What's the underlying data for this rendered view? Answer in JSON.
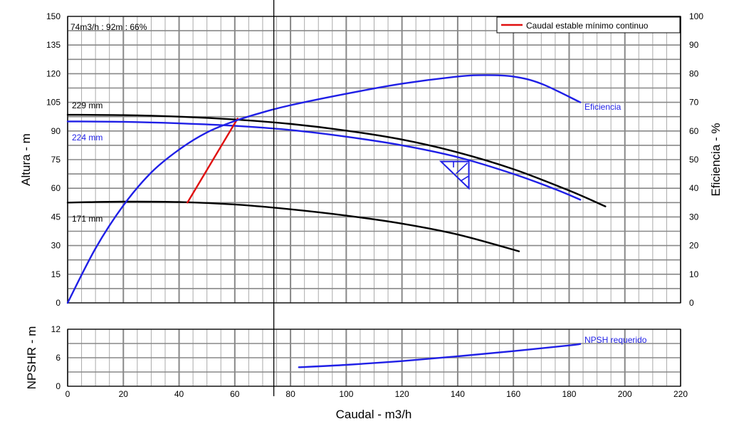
{
  "colors": {
    "black_curve": "#000000",
    "blue_curve": "#1f1fe6",
    "red_curve": "#e01010",
    "grid_minor": "#aaaaaa",
    "grid_major": "#888888"
  },
  "chart_data": [
    {
      "type": "line",
      "title": "",
      "xlabel": "",
      "ylabel": "Altura - m",
      "y2label": "Eficiencia - %",
      "xlim": [
        0,
        220
      ],
      "ylim": [
        0,
        150
      ],
      "y2lim": [
        0,
        100
      ],
      "x_ticks": [
        0,
        20,
        40,
        60,
        80,
        100,
        120,
        140,
        160,
        180,
        200,
        220
      ],
      "y_ticks": [
        0,
        15,
        30,
        45,
        60,
        75,
        90,
        105,
        120,
        135,
        150
      ],
      "y2_ticks": [
        0,
        10,
        20,
        30,
        40,
        50,
        60,
        70,
        80,
        90,
        100
      ],
      "grid": true,
      "legend": {
        "placement": "top-right",
        "entries": [
          {
            "name": "Caudal estable mínimo continuo",
            "color": "#e01010"
          }
        ]
      },
      "annotation": "74m3/h : 92m : 66%",
      "operating_point": {
        "flow": 74,
        "head": 92,
        "efficiency": 66
      },
      "series": [
        {
          "name": "229 mm",
          "axis": "left",
          "color": "#000000",
          "points": [
            [
              0,
              98.5
            ],
            [
              20,
              98.3
            ],
            [
              40,
              97.5
            ],
            [
              60,
              96.0
            ],
            [
              80,
              93.7
            ],
            [
              100,
              90.2
            ],
            [
              120,
              85.5
            ],
            [
              140,
              78.8
            ],
            [
              160,
              70.0
            ],
            [
              180,
              58.8
            ],
            [
              193,
              50.5
            ]
          ]
        },
        {
          "name": "224 mm",
          "axis": "left",
          "color": "#1f1fe6",
          "points": [
            [
              0,
              95.0
            ],
            [
              20,
              94.8
            ],
            [
              40,
              94.0
            ],
            [
              60,
              92.7
            ],
            [
              80,
              90.5
            ],
            [
              100,
              87.0
            ],
            [
              120,
              82.5
            ],
            [
              140,
              76.3
            ],
            [
              160,
              67.5
            ],
            [
              175,
              59.5
            ],
            [
              184,
              54.0
            ]
          ]
        },
        {
          "name": "171 mm",
          "axis": "left",
          "color": "#000000",
          "points": [
            [
              0,
              52.5
            ],
            [
              20,
              53.0
            ],
            [
              40,
              52.8
            ],
            [
              60,
              51.5
            ],
            [
              80,
              49.0
            ],
            [
              100,
              45.7
            ],
            [
              120,
              41.5
            ],
            [
              140,
              35.8
            ],
            [
              162,
              27.0
            ]
          ]
        },
        {
          "name": "Caudal estable mínimo continuo",
          "axis": "left",
          "color": "#e01010",
          "points": [
            [
              43,
              52.5
            ],
            [
              61,
              96.5
            ]
          ]
        },
        {
          "name": "Eficiencia",
          "axis": "right",
          "color": "#1f1fe6",
          "points": [
            [
              0,
              0
            ],
            [
              10,
              19
            ],
            [
              20,
              34
            ],
            [
              30,
              45.5
            ],
            [
              40,
              53.5
            ],
            [
              50,
              59.5
            ],
            [
              60,
              63.5
            ],
            [
              70,
              66.5
            ],
            [
              80,
              69.0
            ],
            [
              100,
              73.0
            ],
            [
              120,
              76.5
            ],
            [
              140,
              79.0
            ],
            [
              150,
              79.5
            ],
            [
              160,
              79.0
            ],
            [
              170,
              76.5
            ],
            [
              184,
              70.0
            ]
          ]
        }
      ],
      "efficiency_triangle": {
        "flow_min": 134,
        "flow_max": 144,
        "head_top": 74,
        "head_bottom": 60
      }
    },
    {
      "type": "line",
      "title": "",
      "xlabel": "Caudal - m3/h",
      "ylabel": "NPSHR - m",
      "xlim": [
        0,
        220
      ],
      "ylim": [
        0,
        12
      ],
      "x_ticks": [
        0,
        20,
        40,
        60,
        80,
        100,
        120,
        140,
        160,
        180,
        200,
        220
      ],
      "y_ticks": [
        0,
        6,
        12
      ],
      "grid": true,
      "series": [
        {
          "name": "NPSH requerido",
          "color": "#1f1fe6",
          "points": [
            [
              83,
              4.0
            ],
            [
              100,
              4.5
            ],
            [
              120,
              5.3
            ],
            [
              140,
              6.3
            ],
            [
              160,
              7.4
            ],
            [
              180,
              8.6
            ],
            [
              184,
              8.9
            ]
          ]
        }
      ]
    }
  ]
}
